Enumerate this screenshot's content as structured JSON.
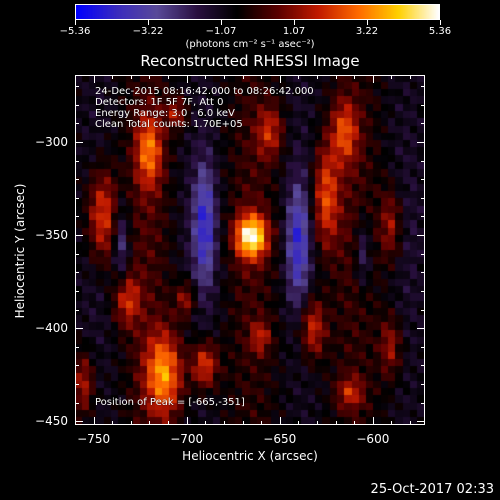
{
  "colorbar": {
    "ticks": [
      "-5.36",
      "-3.22",
      "-1.07",
      "1.07",
      "3.22",
      "5.36"
    ],
    "range": [
      -5.36,
      5.36
    ],
    "units": "(photons cm⁻² s⁻¹ asec⁻²)",
    "colormap": [
      "#0000ff",
      "#3a2bbf",
      "#5a4a9a",
      "#2a1040",
      "#000000",
      "#5a0000",
      "#c01a00",
      "#ff6a00",
      "#ffd000",
      "#ffffff"
    ]
  },
  "title": "Reconstructed RHESSI Image",
  "annotations": {
    "line1": "24-Dec-2015 08:16:42.000 to 08:26:42.000",
    "line2": "Detectors: 1F 5F 7F, Att 0",
    "line3": "Energy Range: 3.0 - 6.0 keV",
    "line4": "Clean    Total counts: 1.70E+05",
    "peak": "Position of Peak = [-665,-351]"
  },
  "chart_data": {
    "type": "heatmap",
    "title": "Reconstructed RHESSI Image",
    "xlabel": "Heliocentric X (arcsec)",
    "ylabel": "Heliocentric Y (arcsec)",
    "xlim": [
      -760,
      -572
    ],
    "ylim": [
      -452,
      -264
    ],
    "xticks": [
      -750,
      -700,
      -650,
      -600
    ],
    "yticks": [
      -300,
      -350,
      -400,
      -450
    ],
    "xtick_labels": [
      "−750",
      "−700",
      "−650",
      "−600"
    ],
    "ytick_labels": [
      "−300",
      "−350",
      "−400",
      "−450"
    ],
    "zrange": [
      -5.36,
      5.36
    ],
    "peak_position": [
      -665,
      -351
    ],
    "peak_value": 5.36,
    "blobs": [
      {
        "x": -665,
        "y": -351,
        "sx": 6,
        "sy": 8,
        "a": 5.36
      },
      {
        "x": -720,
        "y": -305,
        "sx": 5,
        "sy": 14,
        "a": 3.2
      },
      {
        "x": -745,
        "y": -340,
        "sx": 6,
        "sy": 18,
        "a": 3.4
      },
      {
        "x": -712,
        "y": -425,
        "sx": 7,
        "sy": 16,
        "a": 4.0
      },
      {
        "x": -690,
        "y": -420,
        "sx": 5,
        "sy": 9,
        "a": 3.2
      },
      {
        "x": -732,
        "y": -385,
        "sx": 5,
        "sy": 10,
        "a": 2.6
      },
      {
        "x": -700,
        "y": -385,
        "sx": 4,
        "sy": 7,
        "a": 2.2
      },
      {
        "x": -625,
        "y": -330,
        "sx": 5,
        "sy": 20,
        "a": 3.2
      },
      {
        "x": -632,
        "y": -400,
        "sx": 5,
        "sy": 12,
        "a": 2.9
      },
      {
        "x": -660,
        "y": -405,
        "sx": 4,
        "sy": 6,
        "a": 2.0
      },
      {
        "x": -655,
        "y": -295,
        "sx": 5,
        "sy": 10,
        "a": 2.3
      },
      {
        "x": -615,
        "y": -295,
        "sx": 5,
        "sy": 12,
        "a": 2.7
      },
      {
        "x": -590,
        "y": -345,
        "sx": 4,
        "sy": 14,
        "a": 2.3
      },
      {
        "x": -590,
        "y": -410,
        "sx": 4,
        "sy": 12,
        "a": 2.2
      },
      {
        "x": -612,
        "y": -435,
        "sx": 5,
        "sy": 6,
        "a": 2.1
      },
      {
        "x": -705,
        "y": -285,
        "sx": 4,
        "sy": 6,
        "a": 2.2
      },
      {
        "x": -755,
        "y": -430,
        "sx": 4,
        "sy": 12,
        "a": 2.4
      },
      {
        "x": -690,
        "y": -345,
        "sx": 4,
        "sy": 22,
        "a": -3.0
      },
      {
        "x": -640,
        "y": -355,
        "sx": 4,
        "sy": 22,
        "a": -2.9
      },
      {
        "x": -735,
        "y": -355,
        "sx": 3,
        "sy": 16,
        "a": -2.2
      },
      {
        "x": -605,
        "y": -360,
        "sx": 3,
        "sy": 14,
        "a": -2.0
      }
    ]
  },
  "timestamp": "25-Oct-2017 02:33"
}
